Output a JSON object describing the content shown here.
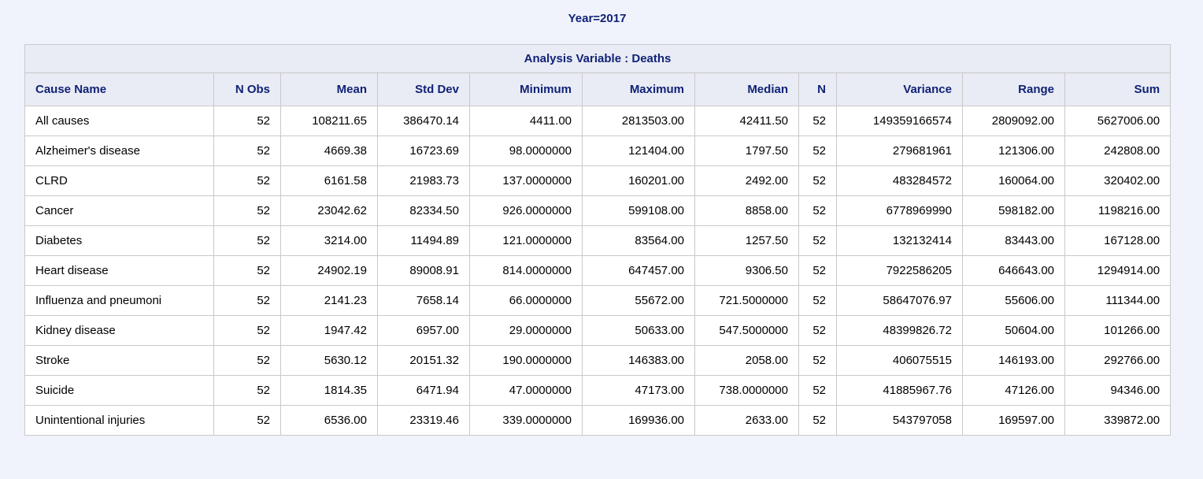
{
  "title": "Year=2017",
  "table": {
    "caption": "Analysis Variable : Deaths",
    "columns": [
      "Cause Name",
      "N Obs",
      "Mean",
      "Std Dev",
      "Minimum",
      "Maximum",
      "Median",
      "N",
      "Variance",
      "Range",
      "Sum"
    ],
    "rows": [
      [
        "All causes",
        "52",
        "108211.65",
        "386470.14",
        "4411.00",
        "2813503.00",
        "42411.50",
        "52",
        "149359166574",
        "2809092.00",
        "5627006.00"
      ],
      [
        "Alzheimer's disease",
        "52",
        "4669.38",
        "16723.69",
        "98.0000000",
        "121404.00",
        "1797.50",
        "52",
        "279681961",
        "121306.00",
        "242808.00"
      ],
      [
        "CLRD",
        "52",
        "6161.58",
        "21983.73",
        "137.0000000",
        "160201.00",
        "2492.00",
        "52",
        "483284572",
        "160064.00",
        "320402.00"
      ],
      [
        "Cancer",
        "52",
        "23042.62",
        "82334.50",
        "926.0000000",
        "599108.00",
        "8858.00",
        "52",
        "6778969990",
        "598182.00",
        "1198216.00"
      ],
      [
        "Diabetes",
        "52",
        "3214.00",
        "11494.89",
        "121.0000000",
        "83564.00",
        "1257.50",
        "52",
        "132132414",
        "83443.00",
        "167128.00"
      ],
      [
        "Heart disease",
        "52",
        "24902.19",
        "89008.91",
        "814.0000000",
        "647457.00",
        "9306.50",
        "52",
        "7922586205",
        "646643.00",
        "1294914.00"
      ],
      [
        "Influenza and pneumoni",
        "52",
        "2141.23",
        "7658.14",
        "66.0000000",
        "55672.00",
        "721.5000000",
        "52",
        "58647076.97",
        "55606.00",
        "111344.00"
      ],
      [
        "Kidney disease",
        "52",
        "1947.42",
        "6957.00",
        "29.0000000",
        "50633.00",
        "547.5000000",
        "52",
        "48399826.72",
        "50604.00",
        "101266.00"
      ],
      [
        "Stroke",
        "52",
        "5630.12",
        "20151.32",
        "190.0000000",
        "146383.00",
        "2058.00",
        "52",
        "406075515",
        "146193.00",
        "292766.00"
      ],
      [
        "Suicide",
        "52",
        "1814.35",
        "6471.94",
        "47.0000000",
        "47173.00",
        "738.0000000",
        "52",
        "41885967.76",
        "47126.00",
        "94346.00"
      ],
      [
        "Unintentional injuries",
        "52",
        "6536.00",
        "23319.46",
        "339.0000000",
        "169936.00",
        "2633.00",
        "52",
        "543797058",
        "169597.00",
        "339872.00"
      ]
    ]
  },
  "colors": {
    "page_background": "#f0f3fb",
    "header_background": "#e9ecf4",
    "header_text": "#112277",
    "cell_background": "#ffffff",
    "cell_text": "#000000",
    "border": "#c9c9c9"
  }
}
